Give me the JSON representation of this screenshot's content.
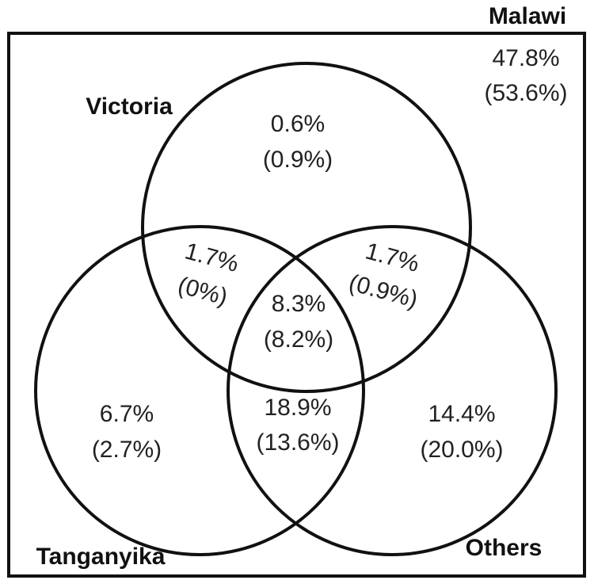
{
  "universe": {
    "label": "Malawi",
    "primary": "47.8%",
    "secondary": "(53.6%)"
  },
  "sets": {
    "victoria": {
      "label": "Victoria"
    },
    "tanganyika": {
      "label": "Tanganyika"
    },
    "others": {
      "label": "Others"
    }
  },
  "regions": {
    "victoria_only": {
      "primary": "0.6%",
      "secondary": "(0.9%)"
    },
    "tanganyika_only": {
      "primary": "6.7%",
      "secondary": "(2.7%)"
    },
    "others_only": {
      "primary": "14.4%",
      "secondary": "(20.0%)"
    },
    "victoria_tanganyika": {
      "primary": "1.7%",
      "secondary": "(0%)"
    },
    "victoria_others": {
      "primary": "1.7%",
      "secondary": "(0.9%)"
    },
    "tanganyika_others": {
      "primary": "18.9%",
      "secondary": "(13.6%)"
    },
    "all_three": {
      "primary": "8.3%",
      "secondary": "(8.2%)"
    }
  },
  "colors": {
    "stroke": "#111111",
    "text": "#222222",
    "background": "#ffffff"
  }
}
